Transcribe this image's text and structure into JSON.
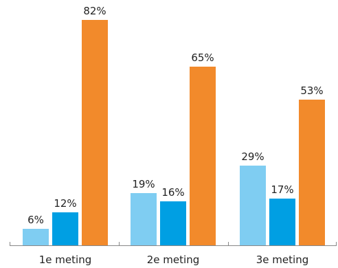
{
  "chart_data": {
    "type": "bar",
    "categories": [
      "1e meting",
      "2e meting",
      "3e meting"
    ],
    "series": [
      {
        "values": [
          6,
          19,
          29
        ],
        "labels": [
          "6%",
          "19%",
          "29%"
        ],
        "color": "#7fcdf2"
      },
      {
        "values": [
          12,
          16,
          17
        ],
        "labels": [
          "12%",
          "16%",
          "17%"
        ],
        "color": "#009fe3"
      },
      {
        "values": [
          82,
          65,
          53
        ],
        "labels": [
          "82%",
          "65%",
          "53%"
        ],
        "color": "#f28a2b"
      }
    ],
    "ylim": [
      0,
      82
    ],
    "value_labels": true,
    "grid": false,
    "legend": "none",
    "axis_color": "#888888"
  }
}
